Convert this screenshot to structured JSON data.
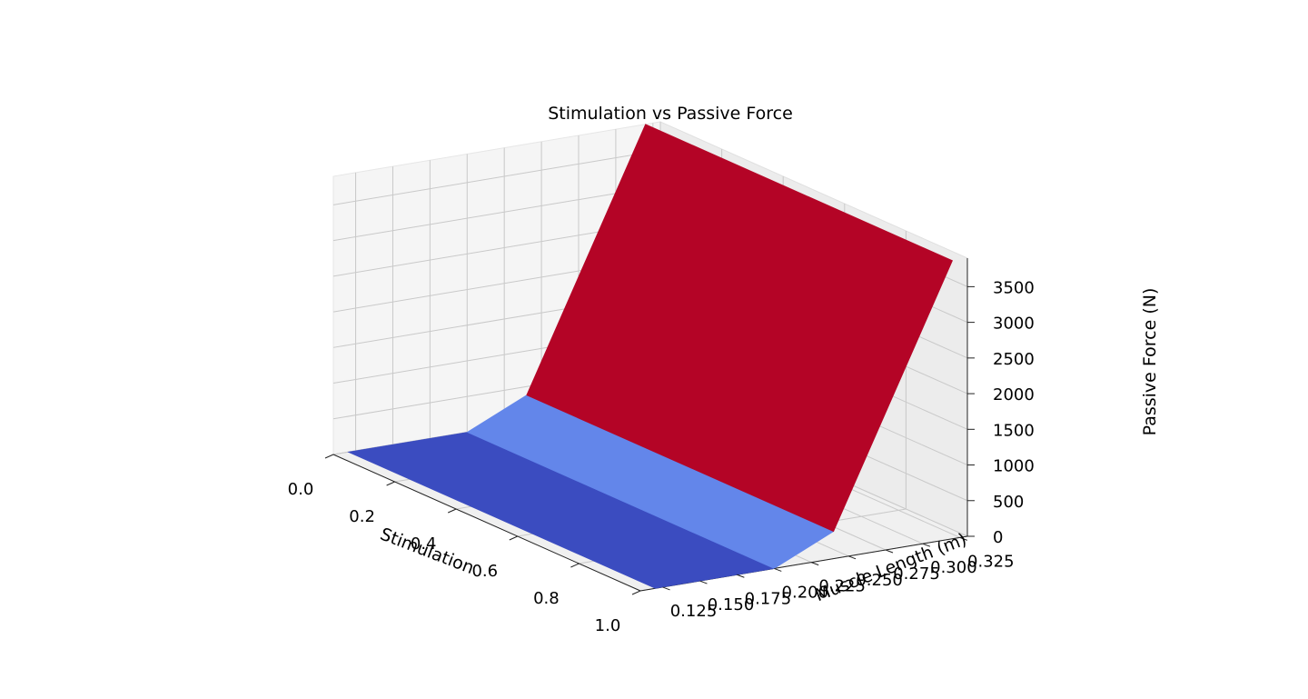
{
  "chart_data": {
    "type": "surface3d",
    "title": "Stimulation vs Passive Force",
    "xlabel": "Stimulation",
    "ylabel": "Muscle Length (m)",
    "zlabel": "Passive Force (N)",
    "xlim": [
      0.0,
      1.0
    ],
    "ylim": [
      0.11,
      0.33
    ],
    "zlim": [
      0,
      3900
    ],
    "xticks": [
      0.0,
      0.2,
      0.4,
      0.6,
      0.8,
      1.0
    ],
    "yticks": [
      0.125,
      0.15,
      0.175,
      0.2,
      0.225,
      0.25,
      0.275,
      0.3,
      0.325
    ],
    "zticks": [
      0,
      500,
      1000,
      1500,
      2000,
      2500,
      3000,
      3500
    ],
    "xtick_labels": [
      "0.0",
      "0.2",
      "0.4",
      "0.6",
      "0.8",
      "1.0"
    ],
    "ytick_labels": [
      "0.125",
      "0.150",
      "0.175",
      "0.200",
      "0.225",
      "0.250",
      "0.275",
      "0.300",
      "0.325"
    ],
    "ztick_labels": [
      "0",
      "500",
      "1000",
      "1500",
      "2000",
      "2500",
      "3000",
      "3500"
    ],
    "grid": true,
    "colormap": "coolwarm",
    "surface": {
      "stimulation": [
        0.0,
        1.0
      ],
      "muscle_length": [
        0.12,
        0.2,
        0.24,
        0.32
      ],
      "passive_force": [
        [
          0,
          0,
          380,
          3900
        ],
        [
          0,
          0,
          380,
          3900
        ]
      ]
    },
    "colors": {
      "low": "#3b4cc0",
      "mid": "#6386ea",
      "high": "#b40426",
      "pane": "#f2f2f2"
    }
  }
}
